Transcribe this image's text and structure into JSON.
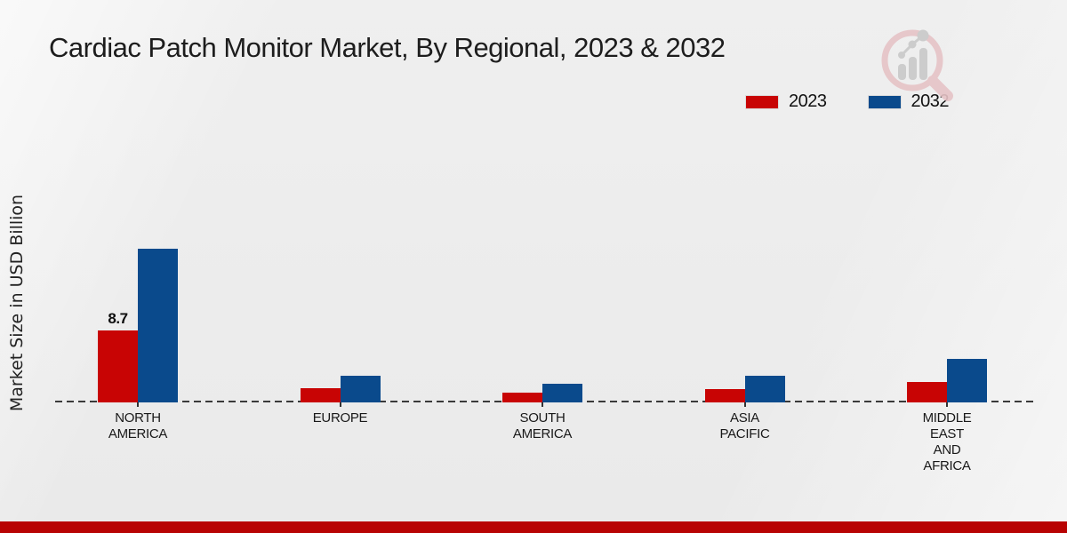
{
  "page": {
    "title": "Cardiac Patch Monitor Market, By Regional, 2023 & 2032"
  },
  "y_axis": {
    "label": "Market Size in USD Billion"
  },
  "legend": {
    "position": "top-right",
    "items": [
      {
        "label": "2023",
        "color": "#c80404"
      },
      {
        "label": "2032",
        "color": "#0a4a8c"
      }
    ]
  },
  "icons": {
    "watermark": "magnifier-bar-chart-logo"
  },
  "colors": {
    "series_2023": "#c80404",
    "series_2032": "#0a4a8c",
    "footer_strip": "#b80303",
    "axis_dash": "#3a3a3a",
    "background": "#ececec"
  },
  "chart_data": {
    "type": "bar",
    "title": "Cardiac Patch Monitor Market, By Regional, 2023 & 2032",
    "xlabel": "",
    "ylabel": "Market Size in USD Billion",
    "ylim": [
      0,
      20
    ],
    "grid": false,
    "legend_position": "top-right",
    "baseline_style": "dashed",
    "categories": [
      "NORTH AMERICA",
      "EUROPE",
      "SOUTH AMERICA",
      "ASIA PACIFIC",
      "MIDDLE EAST AND AFRICA"
    ],
    "category_label_lines": [
      [
        "NORTH",
        "AMERICA"
      ],
      [
        "EUROPE"
      ],
      [
        "SOUTH",
        "AMERICA"
      ],
      [
        "ASIA",
        "PACIFIC"
      ],
      [
        "MIDDLE",
        "EAST",
        "AND",
        "AFRICA"
      ]
    ],
    "series": [
      {
        "name": "2023",
        "color": "#c80404",
        "values": [
          8.7,
          1.7,
          1.2,
          1.6,
          2.5
        ],
        "value_labels": [
          "8.7",
          "",
          "",
          "",
          ""
        ]
      },
      {
        "name": "2032",
        "color": "#0a4a8c",
        "values": [
          18.6,
          3.2,
          2.3,
          3.2,
          5.3
        ],
        "value_labels": [
          "",
          "",
          "",
          "",
          ""
        ]
      }
    ]
  }
}
